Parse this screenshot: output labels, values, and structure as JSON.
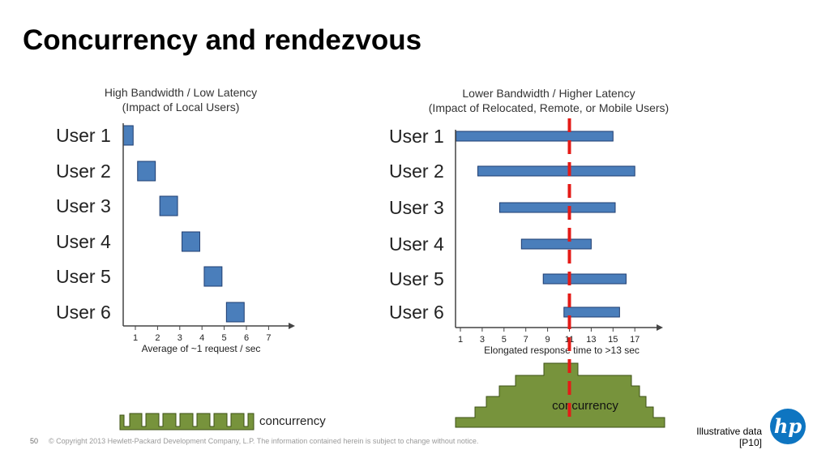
{
  "slide": {
    "title": "Concurrency and rendezvous",
    "page_number": "50",
    "copyright": "© Copyright 2013 Hewlett-Packard Development Company, L.P.  The information contained herein is subject to change without notice.",
    "note_line1": "Illustrative data",
    "note_line2": "[P10]",
    "logo_text": "hp",
    "colors": {
      "bar": "#4a7ebb",
      "bar_stroke": "#1f3d70",
      "concurrency_fill": "#77933c",
      "concurrency_stroke": "#3e5016",
      "marker": "#e41b17",
      "logo": "#0e75c1"
    }
  },
  "chart_data": [
    {
      "type": "bar",
      "title": "High Bandwidth / Low Latency",
      "subtitle": "(Impact of Local Users)",
      "xlabel": "Average of ~1 request / sec",
      "xticks": [
        1,
        2,
        3,
        4,
        5,
        6,
        7
      ],
      "xlim": [
        0.1,
        7.4
      ],
      "categories": [
        "User 1",
        "User 2",
        "User 3",
        "User 4",
        "User 5",
        "User 6"
      ],
      "intervals": [
        [
          0.1,
          0.9
        ],
        [
          1.1,
          1.9
        ],
        [
          2.1,
          2.9
        ],
        [
          3.1,
          3.9
        ],
        [
          4.1,
          4.9
        ],
        [
          5.1,
          5.9
        ]
      ],
      "concurrency_label": "concurrency"
    },
    {
      "type": "bar",
      "title": "Lower Bandwidth / Higher Latency",
      "subtitle": "(Impact of Relocated, Remote, or Mobile Users)",
      "xlabel": "Elongated response time to >13 sec",
      "xticks": [
        1,
        3,
        5,
        7,
        9,
        11,
        13,
        15,
        17
      ],
      "xlim": [
        0.6,
        18
      ],
      "categories": [
        "User 1",
        "User 2",
        "User 3",
        "User 4",
        "User 5",
        "User 6"
      ],
      "intervals": [
        [
          0.6,
          15
        ],
        [
          2.6,
          17
        ],
        [
          4.6,
          15.2
        ],
        [
          6.6,
          13
        ],
        [
          8.6,
          16.2
        ],
        [
          10.5,
          15.6
        ]
      ],
      "marker_x": 11,
      "concurrency_label": "concurrency"
    }
  ]
}
